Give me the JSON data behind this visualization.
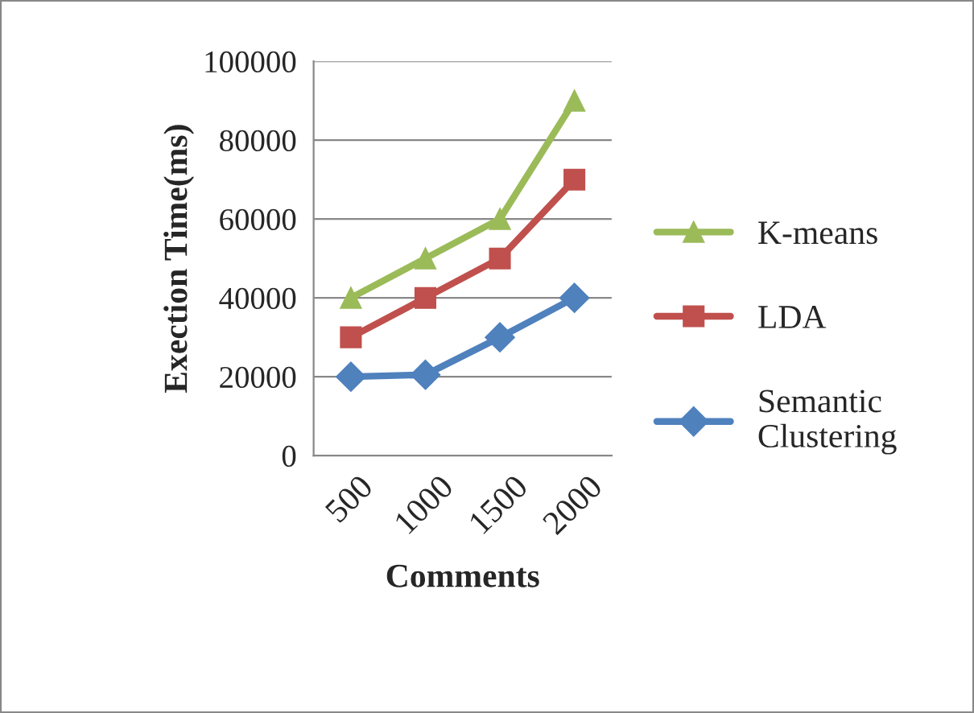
{
  "chart_data": {
    "type": "line",
    "xlabel": "Comments",
    "ylabel": "Exection Time(ms)",
    "categories": [
      "500",
      "1000",
      "1500",
      "2000"
    ],
    "series": [
      {
        "name": "K-means",
        "color": "#9bbb59",
        "marker": "triangle",
        "values": [
          40000,
          50000,
          60000,
          90000
        ]
      },
      {
        "name": "LDA",
        "color": "#c0504d",
        "marker": "square",
        "values": [
          30000,
          40000,
          50000,
          70000
        ]
      },
      {
        "name": "Semantic\nClustering",
        "color": "#4f81bd",
        "marker": "diamond",
        "values": [
          20000,
          20500,
          30000,
          40000
        ]
      }
    ],
    "ylim": [
      0,
      100000
    ],
    "yticks": [
      0,
      20000,
      40000,
      60000,
      80000,
      100000
    ],
    "grid": "y",
    "legend": "right",
    "line_style": "solid"
  }
}
